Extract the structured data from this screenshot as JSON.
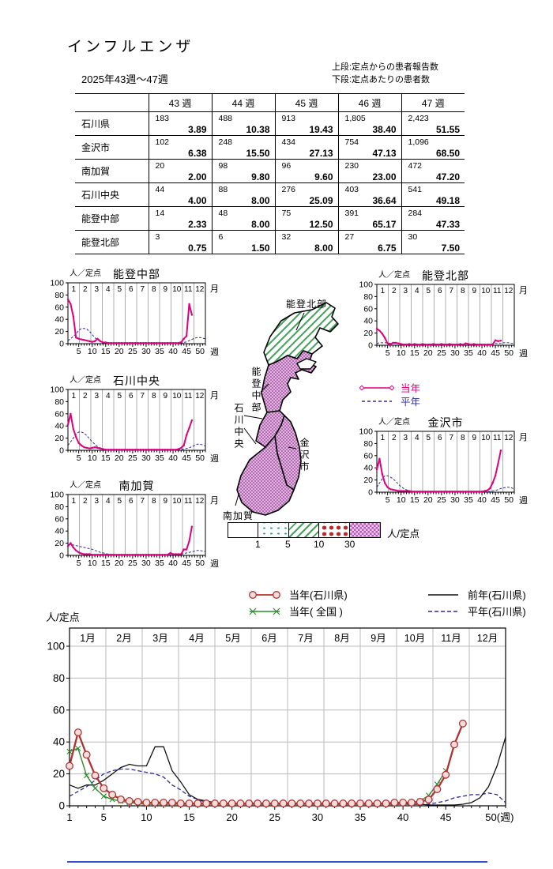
{
  "page": {
    "title": "インフルエンザ",
    "period": "2025年43週～47週",
    "note_line1": "上段:定点からの患者報告数",
    "note_line2": "下段:定点あたりの患者数"
  },
  "table": {
    "week_headers": [
      "43 週",
      "44 週",
      "45 週",
      "46 週",
      "47 週"
    ],
    "rows": [
      {
        "region": "石川県",
        "counts": [
          "183",
          "488",
          "913",
          "1,805",
          "2,423"
        ],
        "rates": [
          "3.89",
          "10.38",
          "19.43",
          "38.40",
          "51.55"
        ]
      },
      {
        "region": "金沢市",
        "counts": [
          "102",
          "248",
          "434",
          "754",
          "1,096"
        ],
        "rates": [
          "6.38",
          "15.50",
          "27.13",
          "47.13",
          "68.50"
        ]
      },
      {
        "region": "南加賀",
        "counts": [
          "20",
          "98",
          "96",
          "230",
          "472"
        ],
        "rates": [
          "2.00",
          "9.80",
          "9.60",
          "23.00",
          "47.20"
        ]
      },
      {
        "region": "石川中央",
        "counts": [
          "44",
          "88",
          "276",
          "403",
          "541"
        ],
        "rates": [
          "4.00",
          "8.00",
          "25.09",
          "36.64",
          "49.18"
        ]
      },
      {
        "region": "能登中部",
        "counts": [
          "14",
          "48",
          "75",
          "391",
          "284"
        ],
        "rates": [
          "2.33",
          "8.00",
          "12.50",
          "65.17",
          "47.33"
        ]
      },
      {
        "region": "能登北部",
        "counts": [
          "3",
          "6",
          "32",
          "27",
          "30"
        ],
        "rates": [
          "0.75",
          "1.50",
          "8.00",
          "6.75",
          "7.50"
        ]
      }
    ]
  },
  "map": {
    "region_labels": {
      "noto_hokubu": "能登北部",
      "noto_chubu": "能登中部",
      "ishikawa_chuo": "石川中央",
      "kanazawa": "金沢市",
      "minami_kaga": "南加賀"
    },
    "fill_levels": {
      "noto_hokubu": "5-10",
      "noto_chubu": "30+",
      "ishikawa_chuo": "30+",
      "kanazawa": "30+",
      "minami_kaga": "30+"
    }
  },
  "map_legend": {
    "current": "当年",
    "normal": "平年"
  },
  "scalebar": {
    "thresholds": [
      "1",
      "5",
      "10",
      "30"
    ],
    "unit": "人/定点"
  },
  "big_legend": {
    "this_pref": "当年(石川県)",
    "this_nation": "当年( 全国 )",
    "last_pref": "前年(石川県)",
    "normal_pref": "平年(石川県)"
  },
  "colors": {
    "current_pink": "#e0007f",
    "normal_navy": "#2b2b99",
    "this_year_pref_red": "#b03333",
    "this_year_nation_green": "#2e8b2e",
    "last_year_black": "#111111"
  },
  "chart_data": [
    {
      "id": "noto_chubu",
      "kind": "mini",
      "type": "line",
      "title": "能登中部",
      "ylabel": "人／定点",
      "month_label": "月",
      "week_label": "週",
      "ylim": [
        0,
        100
      ],
      "yticks": [
        0,
        20,
        40,
        60,
        80,
        100
      ],
      "xticks": [
        5,
        10,
        15,
        20,
        25,
        30,
        35,
        40,
        45,
        50
      ],
      "months": [
        "1",
        "2",
        "3",
        "4",
        "5",
        "6",
        "7",
        "8",
        "9",
        "10",
        "11",
        "12"
      ],
      "series": [
        {
          "name": "当年",
          "values": [
            73,
            65,
            45,
            10,
            8,
            7,
            6,
            5,
            4,
            3,
            4,
            8,
            4,
            2,
            2,
            1,
            1,
            1,
            1,
            1,
            1,
            1,
            1,
            1,
            1,
            1,
            1,
            1,
            1,
            1,
            1,
            1,
            1,
            1,
            1,
            1,
            1,
            1,
            1,
            1,
            1,
            1,
            2.33,
            8,
            12.5,
            65.17,
            47.33
          ]
        },
        {
          "name": "平年",
          "values": [
            5,
            8,
            12,
            16,
            22,
            25,
            25,
            24,
            20,
            15,
            10,
            6,
            4,
            2,
            2,
            1,
            1,
            1,
            1,
            1,
            1,
            1,
            1,
            1,
            1,
            1,
            1,
            1,
            1,
            1,
            1,
            1,
            1,
            1,
            1,
            1,
            1,
            1,
            1,
            1,
            1,
            1,
            1,
            2,
            3,
            5,
            7,
            9,
            10,
            10,
            9,
            8
          ]
        }
      ]
    },
    {
      "id": "noto_hokubu",
      "kind": "mini",
      "type": "line",
      "title": "能登北部",
      "ylabel": "人／定点",
      "month_label": "月",
      "week_label": "週",
      "ylim": [
        0,
        100
      ],
      "yticks": [
        0,
        20,
        40,
        60,
        80,
        100
      ],
      "xticks": [
        5,
        10,
        15,
        20,
        25,
        30,
        35,
        40,
        45,
        50
      ],
      "months": [
        "1",
        "2",
        "3",
        "4",
        "5",
        "6",
        "7",
        "8",
        "9",
        "10",
        "11",
        "12"
      ],
      "series": [
        {
          "name": "当年",
          "values": [
            27,
            24,
            19,
            12,
            3,
            1,
            4,
            4,
            3,
            2,
            1,
            1,
            2,
            1,
            2,
            1,
            1,
            2,
            1,
            1,
            1,
            2,
            1,
            1,
            2,
            1,
            1,
            2,
            1,
            1,
            1,
            2,
            1,
            3,
            2,
            1,
            2,
            1,
            1,
            1,
            1,
            1,
            0.75,
            1.5,
            8,
            6.75,
            7.5
          ]
        },
        {
          "name": "平年",
          "values": [
            3,
            4,
            4,
            4,
            4,
            3,
            3,
            3,
            3,
            2,
            2,
            2,
            2,
            2,
            2,
            2,
            2,
            2,
            2,
            2,
            2,
            2,
            2,
            2,
            2,
            2,
            2,
            2,
            2,
            2,
            2,
            2,
            2,
            2,
            2,
            2,
            2,
            2,
            2,
            2,
            2,
            2,
            2,
            2,
            3,
            3,
            3,
            4,
            4,
            4,
            3,
            3
          ]
        }
      ]
    },
    {
      "id": "ishikawa_chuo",
      "kind": "mini",
      "type": "line",
      "title": "石川中央",
      "ylabel": "人／定点",
      "month_label": "月",
      "week_label": "週",
      "ylim": [
        0,
        100
      ],
      "yticks": [
        0,
        20,
        40,
        60,
        80,
        100
      ],
      "xticks": [
        5,
        10,
        15,
        20,
        25,
        30,
        35,
        40,
        45,
        50
      ],
      "months": [
        "1",
        "2",
        "3",
        "4",
        "5",
        "6",
        "7",
        "8",
        "9",
        "10",
        "11",
        "12"
      ],
      "series": [
        {
          "name": "当年",
          "values": [
            42,
            60,
            35,
            22,
            12,
            8,
            5,
            4,
            3,
            4,
            5,
            4,
            3,
            2,
            1,
            1,
            1,
            1,
            1,
            1,
            1,
            1,
            1,
            1,
            1,
            1,
            1,
            1,
            1,
            1,
            1,
            1,
            1,
            1,
            1,
            1,
            1,
            1,
            1,
            1,
            1,
            2,
            4,
            8,
            25.09,
            36.64,
            49.18
          ]
        },
        {
          "name": "平年",
          "values": [
            8,
            14,
            20,
            26,
            30,
            30,
            28,
            24,
            19,
            14,
            10,
            6,
            4,
            2,
            1,
            1,
            1,
            1,
            1,
            1,
            1,
            1,
            1,
            1,
            1,
            1,
            1,
            1,
            1,
            1,
            1,
            1,
            1,
            1,
            1,
            1,
            1,
            1,
            1,
            1,
            1,
            1,
            1,
            2,
            3,
            4,
            6,
            8,
            10,
            10,
            9,
            7
          ]
        }
      ]
    },
    {
      "id": "kanazawa",
      "kind": "mini",
      "type": "line",
      "title": "金沢市",
      "ylabel": "人／定点",
      "month_label": "月",
      "week_label": "週",
      "ylim": [
        0,
        100
      ],
      "yticks": [
        0,
        20,
        40,
        60,
        80,
        100
      ],
      "xticks": [
        5,
        10,
        15,
        20,
        25,
        30,
        35,
        40,
        45,
        50
      ],
      "months": [
        "1",
        "2",
        "3",
        "4",
        "5",
        "6",
        "7",
        "8",
        "9",
        "10",
        "11",
        "12"
      ],
      "series": [
        {
          "name": "当年",
          "values": [
            37,
            55,
            30,
            15,
            8,
            5,
            4,
            3,
            2,
            2,
            2,
            2,
            2,
            1,
            1,
            1,
            1,
            1,
            1,
            1,
            1,
            1,
            1,
            1,
            1,
            1,
            1,
            1,
            1,
            1,
            1,
            1,
            1,
            1,
            1,
            1,
            1,
            1,
            1,
            1,
            2,
            3,
            6.38,
            15.5,
            27.13,
            47.13,
            68.5
          ]
        },
        {
          "name": "平年",
          "values": [
            8,
            15,
            22,
            27,
            27,
            25,
            22,
            18,
            13,
            9,
            6,
            4,
            2,
            1,
            1,
            1,
            1,
            1,
            1,
            1,
            1,
            1,
            1,
            1,
            1,
            1,
            1,
            1,
            1,
            1,
            1,
            1,
            1,
            1,
            1,
            1,
            1,
            1,
            1,
            1,
            1,
            1,
            1,
            2,
            3,
            4,
            6,
            7,
            8,
            8,
            7,
            5
          ]
        }
      ]
    },
    {
      "id": "minami_kaga",
      "kind": "mini",
      "type": "line",
      "title": "南加賀",
      "ylabel": "人／定点",
      "month_label": "月",
      "week_label": "週",
      "ylim": [
        0,
        100
      ],
      "yticks": [
        0,
        20,
        40,
        60,
        80,
        100
      ],
      "xticks": [
        5,
        10,
        15,
        20,
        25,
        30,
        35,
        40,
        45,
        50
      ],
      "months": [
        "1",
        "2",
        "3",
        "4",
        "5",
        "6",
        "7",
        "8",
        "9",
        "10",
        "11",
        "12"
      ],
      "series": [
        {
          "name": "当年",
          "values": [
            15,
            20,
            13,
            8,
            5,
            3,
            2,
            2,
            2,
            1,
            1,
            1,
            1,
            1,
            1,
            1,
            1,
            1,
            1,
            1,
            1,
            1,
            1,
            1,
            1,
            1,
            1,
            1,
            1,
            1,
            1,
            1,
            1,
            1,
            1,
            1,
            1,
            1,
            4,
            2,
            2,
            2,
            2,
            9.8,
            9.6,
            23,
            47.2
          ]
        },
        {
          "name": "平年",
          "values": [
            18,
            18,
            17,
            16,
            15,
            14,
            13,
            12,
            11,
            10,
            8,
            7,
            5,
            4,
            3,
            2,
            2,
            1,
            1,
            1,
            1,
            1,
            1,
            1,
            1,
            1,
            1,
            1,
            1,
            1,
            1,
            1,
            1,
            1,
            1,
            1,
            1,
            1,
            1,
            1,
            1,
            1,
            2,
            3,
            4,
            5,
            6,
            7,
            8,
            8,
            7,
            6
          ]
        }
      ]
    },
    {
      "id": "big",
      "kind": "big",
      "type": "line",
      "ylabel": "人/定点",
      "week_suffix": "(週)",
      "ylim": [
        0,
        100
      ],
      "yticks": [
        0,
        20,
        40,
        60,
        80,
        100
      ],
      "xticks": [
        1,
        5,
        10,
        15,
        20,
        25,
        30,
        35,
        40,
        45,
        50
      ],
      "months": [
        "1月",
        "2月",
        "3月",
        "4月",
        "5月",
        "6月",
        "7月",
        "8月",
        "9月",
        "10月",
        "11月",
        "12月"
      ],
      "series": [
        {
          "name": "平年(石川県)",
          "values": [
            6,
            9,
            12,
            16,
            20,
            22,
            23,
            23,
            22,
            21,
            20,
            18,
            13,
            10,
            6,
            4,
            2,
            1.5,
            1,
            1,
            1,
            1,
            1,
            1,
            1,
            1,
            1,
            1,
            1,
            1,
            1,
            1,
            1,
            1,
            1,
            1,
            1,
            1,
            1,
            1,
            1,
            1,
            1,
            2,
            3,
            5,
            6,
            7,
            7,
            8,
            7,
            2
          ]
        },
        {
          "name": "前年(石川県)",
          "values": [
            13,
            11,
            13,
            13,
            16,
            20,
            24,
            26,
            25,
            25,
            37,
            37,
            22,
            15,
            7,
            4,
            3,
            2,
            1,
            1,
            1,
            1,
            1,
            1,
            1,
            1,
            1,
            1,
            1,
            1,
            1,
            1,
            1,
            1,
            1,
            1,
            1,
            1,
            1,
            1,
            1,
            1,
            0.5,
            0.5,
            0.5,
            0.5,
            1,
            2,
            5,
            12,
            25,
            43
          ]
        },
        {
          "name": "当年( 全国 )",
          "values": [
            34,
            36,
            19,
            11,
            6,
            4,
            3,
            2,
            1.5,
            1,
            1,
            1,
            1,
            1,
            1,
            1,
            1,
            1,
            1,
            1,
            1,
            1,
            1,
            1,
            1,
            1,
            1,
            1,
            1,
            1,
            1,
            1,
            1,
            1,
            1,
            1,
            1,
            1,
            1,
            1.5,
            2,
            3,
            6.5,
            13.5,
            22
          ]
        },
        {
          "name": "当年(石川県)",
          "values": [
            25,
            46,
            32,
            19,
            11,
            7,
            4,
            3,
            2.5,
            2,
            2,
            2,
            2,
            1.5,
            1.5,
            1.5,
            1.5,
            1.5,
            1.5,
            1.5,
            1.5,
            1.5,
            1.5,
            1.5,
            1.5,
            1.5,
            1.5,
            1.5,
            1.5,
            1.5,
            1.5,
            1.5,
            1.5,
            1.5,
            1.5,
            1.5,
            1.5,
            1.5,
            2,
            2,
            2,
            2.5,
            3.89,
            10.38,
            19.43,
            38.4,
            51.55
          ]
        }
      ]
    }
  ]
}
